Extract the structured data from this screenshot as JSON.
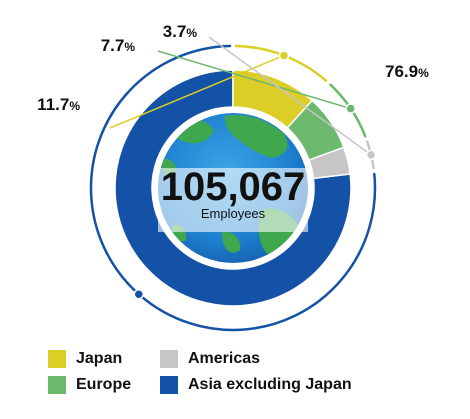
{
  "chart_data": {
    "type": "pie",
    "variant": "donut",
    "center_total": "105,067",
    "center_label": "Employees",
    "categories": [
      "Asia excluding Japan",
      "Japan",
      "Europe",
      "Americas"
    ],
    "values": [
      76.9,
      11.7,
      7.7,
      3.7
    ],
    "value_labels": [
      "76.9",
      "11.7",
      "7.7",
      "3.7"
    ],
    "unit": "%",
    "colors": [
      "#1352a6",
      "#dcce26",
      "#6cb86d",
      "#c6c6c6"
    ],
    "legend_position": "bottom",
    "legend": [
      {
        "label": "Japan",
        "color": "#dcce26"
      },
      {
        "label": "Americas",
        "color": "#c6c6c6"
      },
      {
        "label": "Europe",
        "color": "#6cb86d"
      },
      {
        "label": "Asia excluding Japan",
        "color": "#1352a6"
      }
    ]
  }
}
